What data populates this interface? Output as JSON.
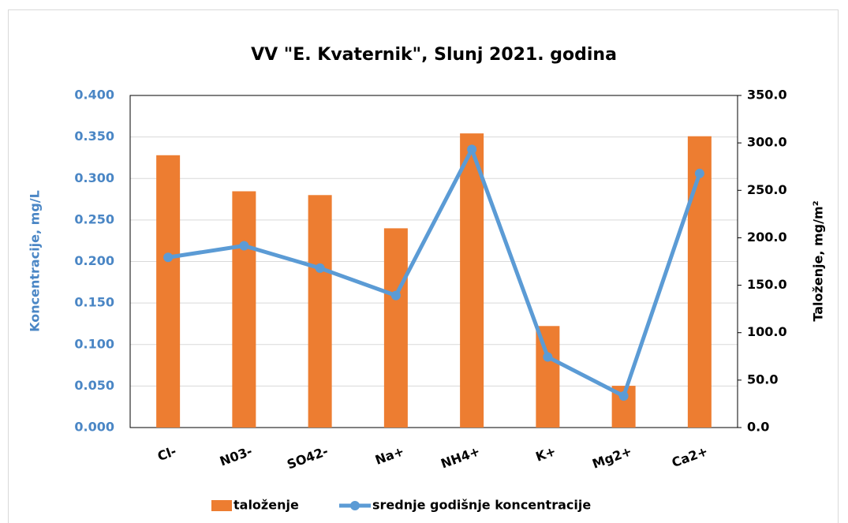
{
  "chart_data": {
    "type": "bar",
    "title": "VV \"E. Kvaternik\", Slunj 2021. godina",
    "ylabel": "Koncentracije, mg/L",
    "y2label": "Taloženje, mg/m²",
    "categories": [
      "Cl-",
      "N03-",
      "SO42-",
      "Na+",
      "NH4+",
      "K+",
      "Mg2+",
      "Ca2+"
    ],
    "series": [
      {
        "name": "taloženje",
        "type": "bar",
        "axis": "y2",
        "color": "#ed7d31",
        "values": [
          287,
          249,
          245,
          210,
          310,
          107,
          44,
          307
        ]
      },
      {
        "name": "srednje godišnje koncentracije",
        "type": "line",
        "color": "#5b9bd5",
        "values": [
          0.205,
          0.219,
          0.192,
          0.159,
          0.335,
          0.085,
          0.038,
          0.306
        ]
      }
    ],
    "ylim": [
      0,
      0.4
    ],
    "yticks": [
      {
        "value": 0,
        "label": "0.000"
      },
      {
        "value": 0.05,
        "label": "0.050"
      },
      {
        "value": 0.1,
        "label": "0.100"
      },
      {
        "value": 0.15,
        "label": "0.150"
      },
      {
        "value": 0.2,
        "label": "0.200"
      },
      {
        "value": 0.25,
        "label": "0.250"
      },
      {
        "value": 0.3,
        "label": "0.300"
      },
      {
        "value": 0.35,
        "label": "0.350"
      },
      {
        "value": 0.4,
        "label": "0.400"
      }
    ],
    "y2lim": [
      0,
      350
    ],
    "y2ticks": [
      {
        "value": 0,
        "label": "0.0"
      },
      {
        "value": 50,
        "label": "50.0"
      },
      {
        "value": 100,
        "label": "100.0"
      },
      {
        "value": 150,
        "label": "150.0"
      },
      {
        "value": 200,
        "label": "200.0"
      },
      {
        "value": 250,
        "label": "250.0"
      },
      {
        "value": 300,
        "label": "300.0"
      },
      {
        "value": 350,
        "label": "350.0"
      }
    ],
    "grid": true,
    "legend": "bottom"
  }
}
